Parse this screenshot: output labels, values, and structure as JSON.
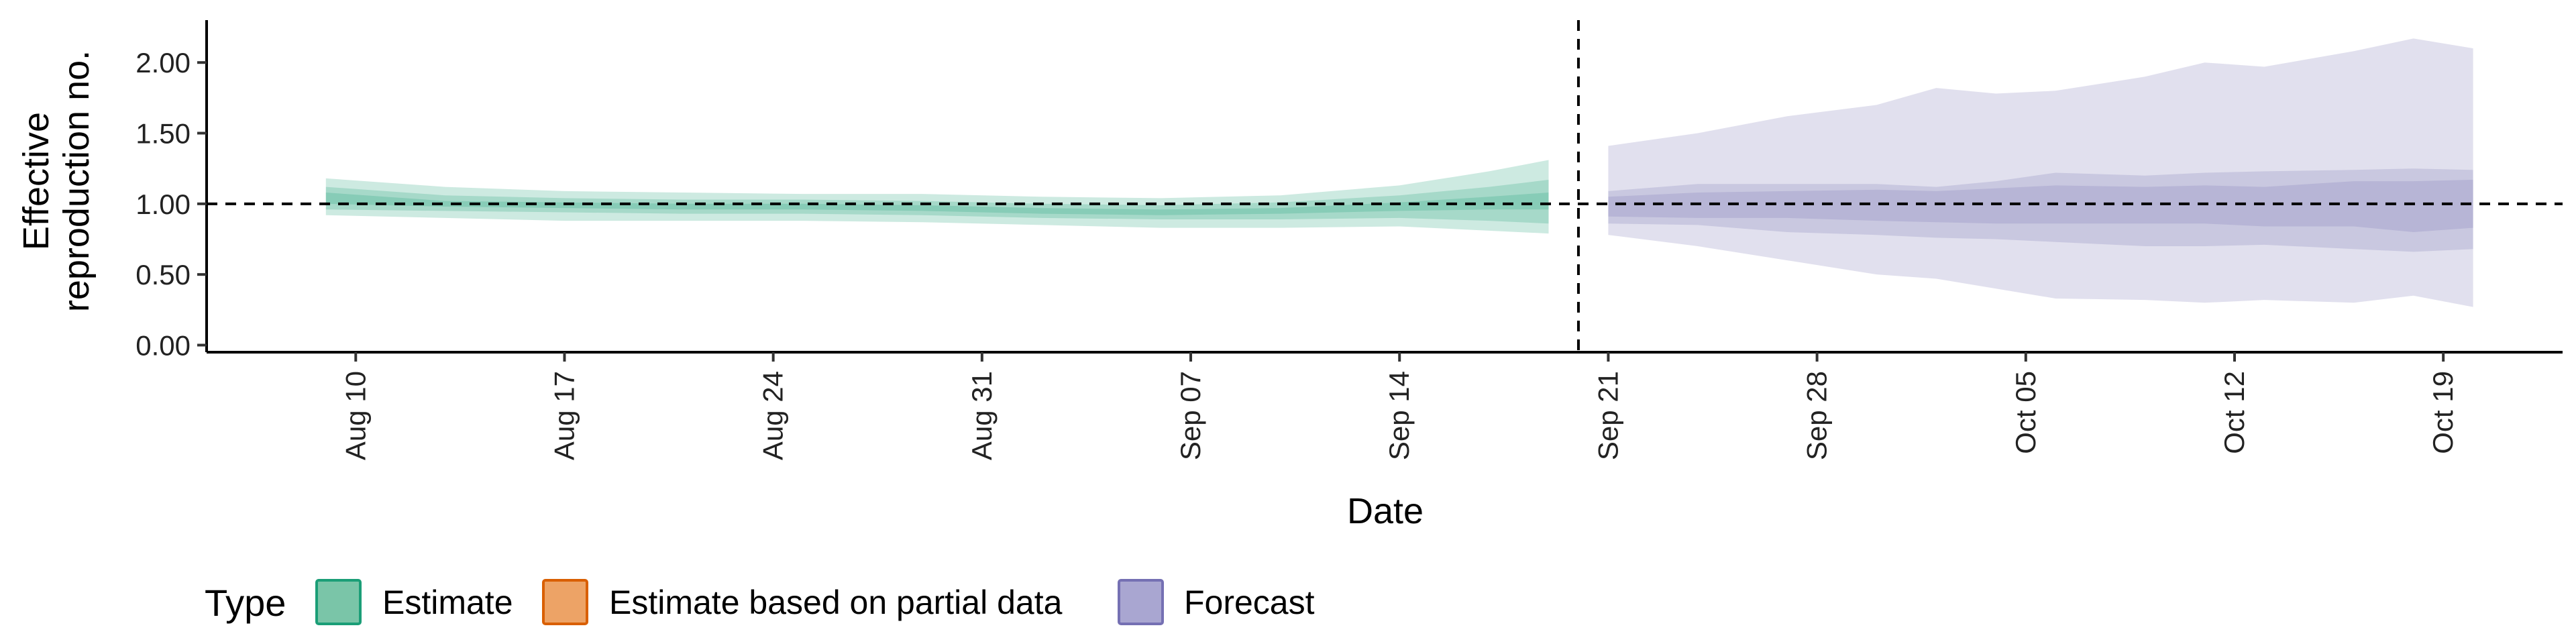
{
  "chart_data": {
    "type": "area",
    "title": "",
    "xlabel": "Date",
    "ylabel_lines": [
      "Effective",
      "reproduction no."
    ],
    "ylim": [
      -0.05,
      2.3
    ],
    "y_ticks": [
      0.0,
      0.5,
      1.0,
      1.5,
      2.0
    ],
    "y_tick_labels": [
      "0.00",
      "0.50",
      "1.00",
      "1.50",
      "2.00"
    ],
    "x_range": [
      "2020-08-05",
      "2020-10-23"
    ],
    "x_ticks": [
      "2020-08-10",
      "2020-08-17",
      "2020-08-24",
      "2020-08-31",
      "2020-09-07",
      "2020-09-14",
      "2020-09-21",
      "2020-09-28",
      "2020-10-05",
      "2020-10-12",
      "2020-10-19"
    ],
    "x_tick_labels": [
      "Aug 10",
      "Aug 17",
      "Aug 24",
      "Aug 31",
      "Sep 07",
      "Sep 14",
      "Sep 21",
      "Sep 28",
      "Oct 05",
      "Oct 12",
      "Oct 19"
    ],
    "reference_hline": 1.0,
    "reference_vline": "2020-09-20",
    "legend": {
      "title": "Type",
      "position": "bottom",
      "entries": [
        {
          "label": "Estimate",
          "fill": "#7ac5a8",
          "stroke": "#1b9e77"
        },
        {
          "label": "Estimate based on partial data",
          "fill": "#eda366",
          "stroke": "#d95f02"
        },
        {
          "label": "Forecast",
          "fill": "#a9a6d1",
          "stroke": "#7570b3"
        }
      ]
    },
    "series": [
      {
        "name": "Estimate",
        "color": "#1b9e77",
        "x": [
          "2020-08-09",
          "2020-08-13",
          "2020-08-17",
          "2020-08-21",
          "2020-08-25",
          "2020-08-29",
          "2020-09-02",
          "2020-09-06",
          "2020-09-10",
          "2020-09-14",
          "2020-09-17",
          "2020-09-19"
        ],
        "median": [
          1.04,
          1.0,
          0.99,
          0.98,
          0.98,
          0.97,
          0.95,
          0.94,
          0.95,
          0.98,
          1.0,
          1.01
        ],
        "inner_lower": [
          1.0,
          0.98,
          0.97,
          0.96,
          0.96,
          0.95,
          0.93,
          0.92,
          0.93,
          0.95,
          0.96,
          0.96
        ],
        "inner_upper": [
          1.08,
          1.02,
          1.01,
          1.0,
          1.0,
          0.99,
          0.97,
          0.96,
          0.97,
          1.01,
          1.05,
          1.08
        ],
        "mid_lower": [
          0.96,
          0.95,
          0.94,
          0.93,
          0.93,
          0.92,
          0.9,
          0.89,
          0.89,
          0.9,
          0.88,
          0.86
        ],
        "mid_upper": [
          1.12,
          1.06,
          1.04,
          1.03,
          1.03,
          1.02,
          1.0,
          0.99,
          1.01,
          1.06,
          1.12,
          1.17
        ],
        "outer_lower": [
          0.92,
          0.9,
          0.88,
          0.88,
          0.88,
          0.87,
          0.85,
          0.83,
          0.83,
          0.84,
          0.81,
          0.79
        ],
        "outer_upper": [
          1.18,
          1.12,
          1.09,
          1.08,
          1.07,
          1.07,
          1.05,
          1.04,
          1.06,
          1.13,
          1.23,
          1.31
        ]
      },
      {
        "name": "Forecast",
        "color": "#7570b3",
        "x": [
          "2020-09-21",
          "2020-09-24",
          "2020-09-27",
          "2020-09-30",
          "2020-10-02",
          "2020-10-04",
          "2020-10-06",
          "2020-10-09",
          "2020-10-11",
          "2020-10-13",
          "2020-10-16",
          "2020-10-18",
          "2020-10-20"
        ],
        "median": [
          0.98,
          0.98,
          0.98,
          0.97,
          0.96,
          0.96,
          0.97,
          0.96,
          0.96,
          0.95,
          0.95,
          0.93,
          0.94
        ],
        "inner_lower": [
          0.91,
          0.9,
          0.9,
          0.88,
          0.87,
          0.86,
          0.86,
          0.86,
          0.86,
          0.84,
          0.84,
          0.8,
          0.83
        ],
        "inner_upper": [
          1.05,
          1.08,
          1.09,
          1.1,
          1.09,
          1.11,
          1.13,
          1.12,
          1.13,
          1.12,
          1.16,
          1.16,
          1.17
        ],
        "mid_lower": [
          0.86,
          0.85,
          0.8,
          0.78,
          0.76,
          0.75,
          0.73,
          0.7,
          0.7,
          0.71,
          0.68,
          0.66,
          0.68
        ],
        "mid_upper": [
          1.09,
          1.14,
          1.14,
          1.14,
          1.12,
          1.16,
          1.22,
          1.2,
          1.22,
          1.23,
          1.24,
          1.25,
          1.24
        ],
        "outer_lower": [
          0.78,
          0.7,
          0.6,
          0.5,
          0.47,
          0.4,
          0.33,
          0.32,
          0.3,
          0.32,
          0.3,
          0.35,
          0.27
        ],
        "outer_upper": [
          1.41,
          1.5,
          1.62,
          1.7,
          1.82,
          1.78,
          1.8,
          1.9,
          2.0,
          1.97,
          2.08,
          2.17,
          2.1
        ]
      }
    ]
  }
}
